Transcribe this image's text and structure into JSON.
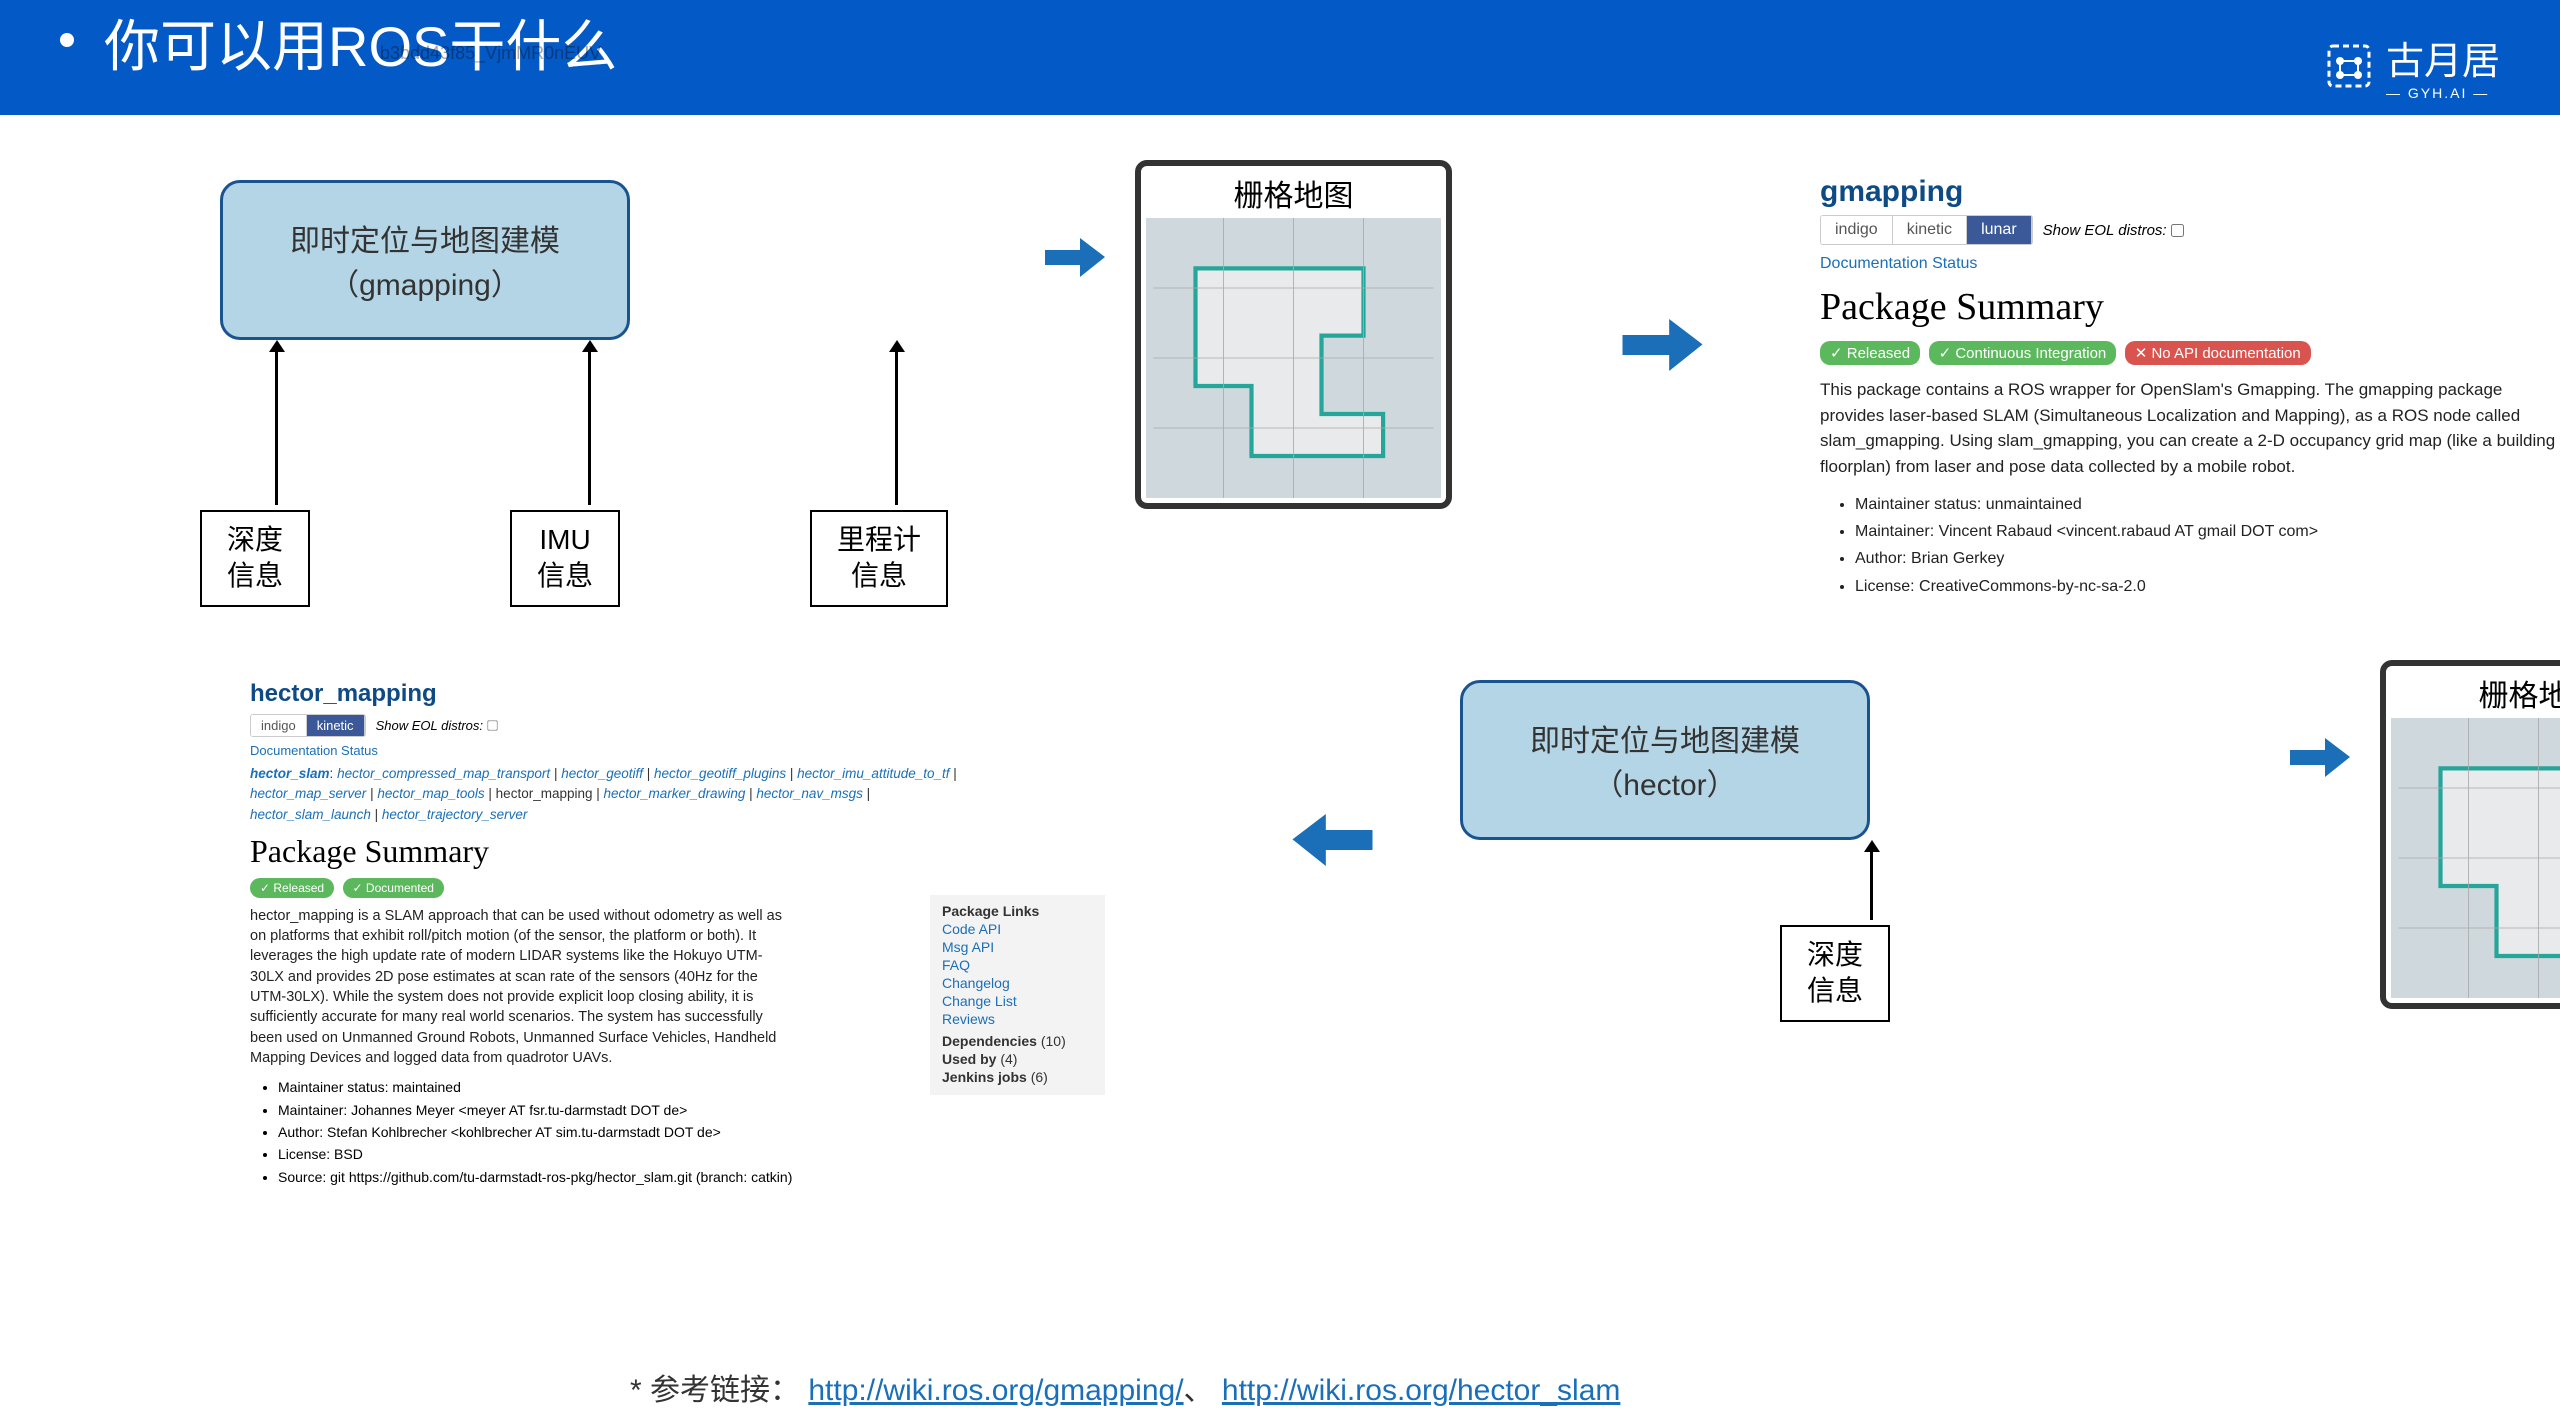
{
  "header": {
    "title": "你可以用ROS干什么",
    "logo_text": "古月居",
    "logo_sub": "— GYH.AI —"
  },
  "watermark": "b3bdd43f85_VjmMR0nEUV",
  "diagram_top": {
    "slam_line1": "即时定位与地图建模",
    "slam_line2": "（gmapping）",
    "inputs": [
      "深度\n信息",
      "IMU\n信息",
      "里程计\n信息"
    ],
    "map_label": "栅格地图"
  },
  "diagram_bottom": {
    "slam_line1": "即时定位与地图建模",
    "slam_line2": "（hector）",
    "input": "深度\n信息",
    "map_label": "栅格地图"
  },
  "gmapping": {
    "title": "gmapping",
    "tabs": [
      "indigo",
      "kinetic",
      "lunar"
    ],
    "active": 2,
    "eol": "Show EOL distros:",
    "docstat": "Documentation Status",
    "sum": "Package Summary",
    "badges": [
      {
        "text": "✓ Released",
        "cls": "bg-green"
      },
      {
        "text": "✓ Continuous Integration",
        "cls": "bg-green"
      },
      {
        "text": "✕ No API documentation",
        "cls": "bg-red"
      }
    ],
    "desc": "This package contains a ROS wrapper for OpenSlam's Gmapping. The gmapping package provides laser-based SLAM (Simultaneous Localization and Mapping), as a ROS node called slam_gmapping. Using slam_gmapping, you can create a 2-D occupancy grid map (like a building floorplan) from laser and pose data collected by a mobile robot.",
    "meta": [
      "Maintainer status: unmaintained",
      "Maintainer: Vincent Rabaud <vincent.rabaud AT gmail DOT com>",
      "Author: Brian Gerkey",
      "License: CreativeCommons-by-nc-sa-2.0"
    ]
  },
  "hector": {
    "title": "hector_mapping",
    "tabs": [
      "indigo",
      "kinetic"
    ],
    "active": 1,
    "eol": "Show EOL distros:",
    "docstat": "Documentation Status",
    "pkgs_bold": "hector_slam",
    "pkgs": "hector_compressed_map_transport | hector_geotiff | hector_geotiff_plugins | hector_imu_attitude_to_tf | hector_map_server | hector_map_tools | hector_mapping | hector_marker_drawing | hector_nav_msgs | hector_slam_launch | hector_trajectory_server",
    "sum": "Package Summary",
    "badges": [
      {
        "text": "✓ Released",
        "cls": "bg-green"
      },
      {
        "text": "✓ Documented",
        "cls": "bg-green"
      }
    ],
    "desc": "hector_mapping is a SLAM approach that can be used without odometry as well as on platforms that exhibit roll/pitch motion (of the sensor, the platform or both). It leverages the high update rate of modern LIDAR systems like the Hokuyo UTM-30LX and provides 2D pose estimates at scan rate of the sensors (40Hz for the UTM-30LX). While the system does not provide explicit loop closing ability, it is sufficiently accurate for many real world scenarios. The system has successfully been used on Unmanned Ground Robots, Unmanned Surface Vehicles, Handheld Mapping Devices and logged data from quadrotor UAVs.",
    "meta": [
      "Maintainer status: maintained",
      "Maintainer: Johannes Meyer <meyer AT fsr.tu-darmstadt DOT de>",
      "Author: Stefan Kohlbrecher <kohlbrecher AT sim.tu-darmstadt DOT de>",
      "License: BSD"
    ],
    "source_label": "Source: git ",
    "source_url": "https://github.com/tu-darmstadt-ros-pkg/hector_slam.git",
    "source_branch": " (branch: catkin)",
    "sidebar": {
      "title": "Package Links",
      "links": [
        "Code API",
        "Msg API",
        "FAQ",
        "Changelog",
        "Change List",
        "Reviews"
      ],
      "deps": "Dependencies",
      "deps_n": "(10)",
      "used": "Used by",
      "used_n": "(4)",
      "jenk": "Jenkins jobs",
      "jenk_n": "(6)"
    }
  },
  "footer": {
    "label": "* 参考链接：",
    "link1": "http://wiki.ros.org/gmapping/",
    "sep": "、",
    "link2": "http://wiki.ros.org/hector_slam"
  }
}
